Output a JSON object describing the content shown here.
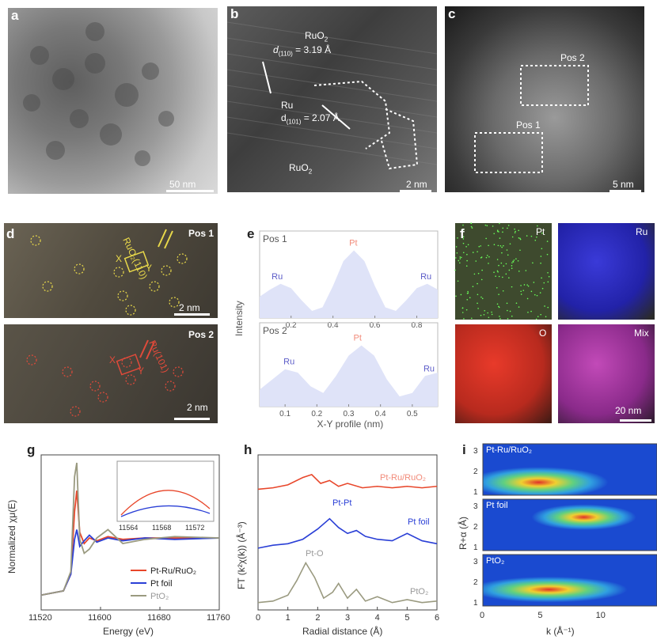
{
  "panels": {
    "a": {
      "letter": "a",
      "scale": "50 nm"
    },
    "b": {
      "letter": "b",
      "ruo2_label": "RuO",
      "ruo2_sub": "2",
      "d110_prefix": "d",
      "d110_sub": "(110)",
      "d110_value": " = 3.19 Å",
      "ru_label": "Ru",
      "d101_prefix": "d",
      "d101_sub": "(101)",
      "d101_value": " = 2.07 Å",
      "ruo2_bottom": "RuO",
      "ruo2_bottom_sub": "2",
      "scale": "2 nm"
    },
    "c": {
      "letter": "c",
      "pos1": "Pos 1",
      "pos2": "Pos 2",
      "scale": "5 nm"
    },
    "d": {
      "letter": "d",
      "pos1": "Pos 1",
      "pos2": "Pos 2",
      "ruo2_110": "RuO₂(110)",
      "ru_101": "Ru(101)",
      "x": "X",
      "y": "Y",
      "scale_top": "2 nm",
      "scale_bottom": "2 nm"
    },
    "e": {
      "letter": "e",
      "ylabel": "Intensity",
      "xlabel": "X-Y profile (nm)"
    },
    "f": {
      "letter": "f",
      "pt": "Pt",
      "ru": "Ru",
      "o": "O",
      "mix": "Mix",
      "scale": "20 nm"
    },
    "g": {
      "letter": "g",
      "ylabel": "Normalized χμ(E)",
      "xlabel": "Energy (eV)",
      "legend": [
        "Pt-Ru/RuO₂",
        "Pt foil",
        "PtO₂"
      ],
      "inset_ticks": [
        "11564",
        "11568",
        "11572"
      ]
    },
    "h": {
      "letter": "h",
      "ylabel": "FT (k²χ(k)) (Å⁻³)",
      "xlabel": "Radial distance (Å)",
      "labels": [
        "Pt-Ru/RuO₂",
        "Pt-Pt",
        "Pt foil",
        "Pt-O",
        "PtO₂"
      ]
    },
    "i": {
      "letter": "i",
      "ylabel": "R+α (Å)",
      "xlabel": "k (Å⁻¹)",
      "labels": [
        "Pt-Ru/RuO₂",
        "Pt foil",
        "PtO₂"
      ]
    }
  },
  "colors": {
    "ptru": "#e8462a",
    "ptfoil": "#2a3fd6",
    "pto2": "#9a9a80",
    "pt_peak": "#f28b7a",
    "ru_peak": "#5c5cc8"
  },
  "chart_data": [
    {
      "type": "area",
      "panel": "e-top",
      "title": "Pos 1",
      "x": [
        0.05,
        0.1,
        0.15,
        0.2,
        0.25,
        0.3,
        0.35,
        0.4,
        0.45,
        0.5,
        0.55,
        0.6,
        0.65,
        0.7,
        0.75,
        0.8,
        0.85,
        0.9
      ],
      "y": [
        0.3,
        0.4,
        0.48,
        0.42,
        0.25,
        0.1,
        0.15,
        0.45,
        0.8,
        0.95,
        0.8,
        0.45,
        0.15,
        0.1,
        0.25,
        0.42,
        0.48,
        0.4
      ],
      "xticks": [
        0.2,
        0.4,
        0.6,
        0.8
      ],
      "xlim": [
        0.05,
        0.9
      ],
      "peak_labels": [
        {
          "text": "Ru",
          "x": 0.13
        },
        {
          "text": "Pt",
          "x": 0.5
        },
        {
          "text": "Ru",
          "x": 0.84
        }
      ]
    },
    {
      "type": "area",
      "panel": "e-bottom",
      "title": "Pos 2",
      "x": [
        0.02,
        0.06,
        0.1,
        0.14,
        0.18,
        0.22,
        0.26,
        0.3,
        0.34,
        0.38,
        0.42,
        0.46,
        0.5,
        0.54,
        0.58
      ],
      "y": [
        0.25,
        0.4,
        0.55,
        0.5,
        0.3,
        0.2,
        0.45,
        0.75,
        0.9,
        0.75,
        0.4,
        0.15,
        0.2,
        0.45,
        0.5
      ],
      "xticks": [
        0.1,
        0.2,
        0.3,
        0.4,
        0.5
      ],
      "xlim": [
        0.02,
        0.58
      ],
      "xlabel": "X-Y profile (nm)",
      "peak_labels": [
        {
          "text": "Ru",
          "x": 0.11
        },
        {
          "text": "Pt",
          "x": 0.33
        },
        {
          "text": "Ru",
          "x": 0.55
        }
      ]
    },
    {
      "type": "line",
      "panel": "g",
      "xlabel": "Energy (eV)",
      "ylabel": "Normalized χμ(E)",
      "xlim": [
        11520,
        11760
      ],
      "xticks": [
        11520,
        11600,
        11680,
        11760
      ],
      "series": [
        {
          "name": "Pt-Ru/RuO₂",
          "x": [
            11520,
            11550,
            11560,
            11565,
            11568,
            11572,
            11578,
            11585,
            11595,
            11610,
            11630,
            11660,
            11700,
            11760
          ],
          "y": [
            0.05,
            0.08,
            0.2,
            0.65,
            0.8,
            0.5,
            0.42,
            0.46,
            0.44,
            0.47,
            0.45,
            0.46,
            0.46,
            0.46
          ]
        },
        {
          "name": "Pt foil",
          "x": [
            11520,
            11550,
            11560,
            11565,
            11568,
            11572,
            11578,
            11585,
            11595,
            11610,
            11630,
            11660,
            11700,
            11760
          ],
          "y": [
            0.05,
            0.08,
            0.2,
            0.45,
            0.52,
            0.4,
            0.44,
            0.48,
            0.43,
            0.46,
            0.44,
            0.46,
            0.45,
            0.46
          ]
        },
        {
          "name": "PtO₂",
          "x": [
            11520,
            11550,
            11560,
            11565,
            11568,
            11572,
            11578,
            11585,
            11595,
            11610,
            11630,
            11660,
            11700,
            11760
          ],
          "y": [
            0.05,
            0.08,
            0.22,
            0.9,
            1.0,
            0.45,
            0.35,
            0.38,
            0.46,
            0.52,
            0.42,
            0.45,
            0.47,
            0.46
          ]
        }
      ]
    },
    {
      "type": "line",
      "panel": "h",
      "xlabel": "Radial distance (Å)",
      "xlim": [
        0,
        6
      ],
      "xticks": [
        0,
        1,
        2,
        3,
        4,
        5,
        6
      ],
      "series": [
        {
          "name": "Pt-Ru/RuO₂",
          "x": [
            0,
            0.5,
            1,
            1.5,
            1.8,
            2.1,
            2.4,
            2.7,
            3,
            3.5,
            4,
            4.5,
            5,
            5.5,
            6
          ],
          "y": [
            0.82,
            0.83,
            0.85,
            0.9,
            0.92,
            0.86,
            0.88,
            0.84,
            0.86,
            0.83,
            0.84,
            0.83,
            0.84,
            0.83,
            0.84
          ]
        },
        {
          "name": "Pt foil",
          "x": [
            0,
            0.5,
            1,
            1.5,
            2,
            2.4,
            2.7,
            3,
            3.3,
            3.6,
            4,
            4.5,
            5,
            5.5,
            6
          ],
          "y": [
            0.42,
            0.44,
            0.45,
            0.48,
            0.55,
            0.62,
            0.56,
            0.52,
            0.54,
            0.5,
            0.48,
            0.47,
            0.52,
            0.47,
            0.45
          ]
        },
        {
          "name": "PtO₂",
          "x": [
            0,
            0.5,
            1,
            1.3,
            1.6,
            1.9,
            2.2,
            2.5,
            2.7,
            3,
            3.3,
            3.6,
            4,
            4.5,
            5,
            5.5,
            6
          ],
          "y": [
            0.05,
            0.06,
            0.1,
            0.2,
            0.32,
            0.22,
            0.08,
            0.12,
            0.18,
            0.08,
            0.14,
            0.06,
            0.09,
            0.05,
            0.07,
            0.05,
            0.06
          ]
        }
      ]
    },
    {
      "type": "heatmap",
      "panel": "i",
      "xlabel": "k (Å⁻¹)",
      "ylabel": "R+α (Å)",
      "xticks": [
        0,
        5,
        10
      ],
      "yticks_per_panel": [
        1,
        2,
        3
      ]
    }
  ]
}
